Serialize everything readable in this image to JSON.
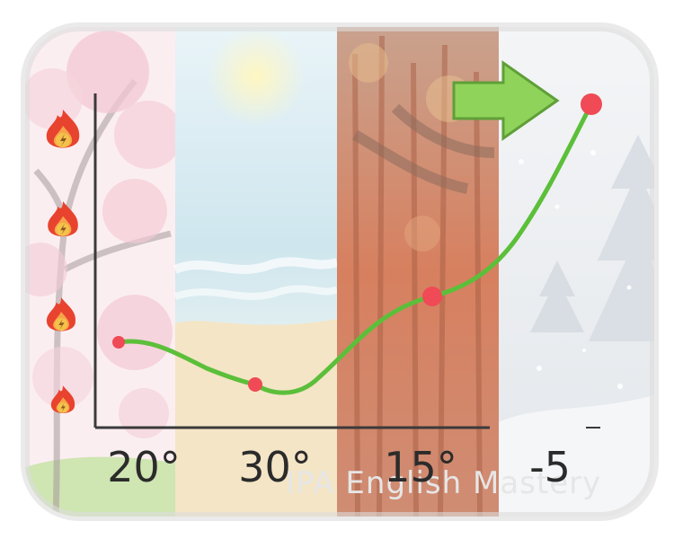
{
  "watermark": "IPA English Mastery",
  "season_panels": [
    "spring",
    "summer",
    "autumn",
    "winter"
  ],
  "icons": [
    "fire-icon",
    "fire-icon",
    "fire-icon",
    "fire-icon",
    "arrow-right-icon"
  ],
  "colors": {
    "curve": "#5cbf3a",
    "points": "#ef4a55",
    "axis": "#3a3a3a",
    "spring": "#f6dbe2",
    "summer": "#f6f0d8",
    "autumn": "#d7805f",
    "winter": "#eceff2",
    "arrow": "#8fd35a"
  },
  "chart_data": {
    "type": "line",
    "categories": [
      "20°",
      "30°",
      "15°",
      "-5"
    ],
    "values": [
      20,
      30,
      15,
      -5
    ],
    "title": "",
    "xlabel": "",
    "ylabel": "",
    "grid": false,
    "legend": "none"
  }
}
